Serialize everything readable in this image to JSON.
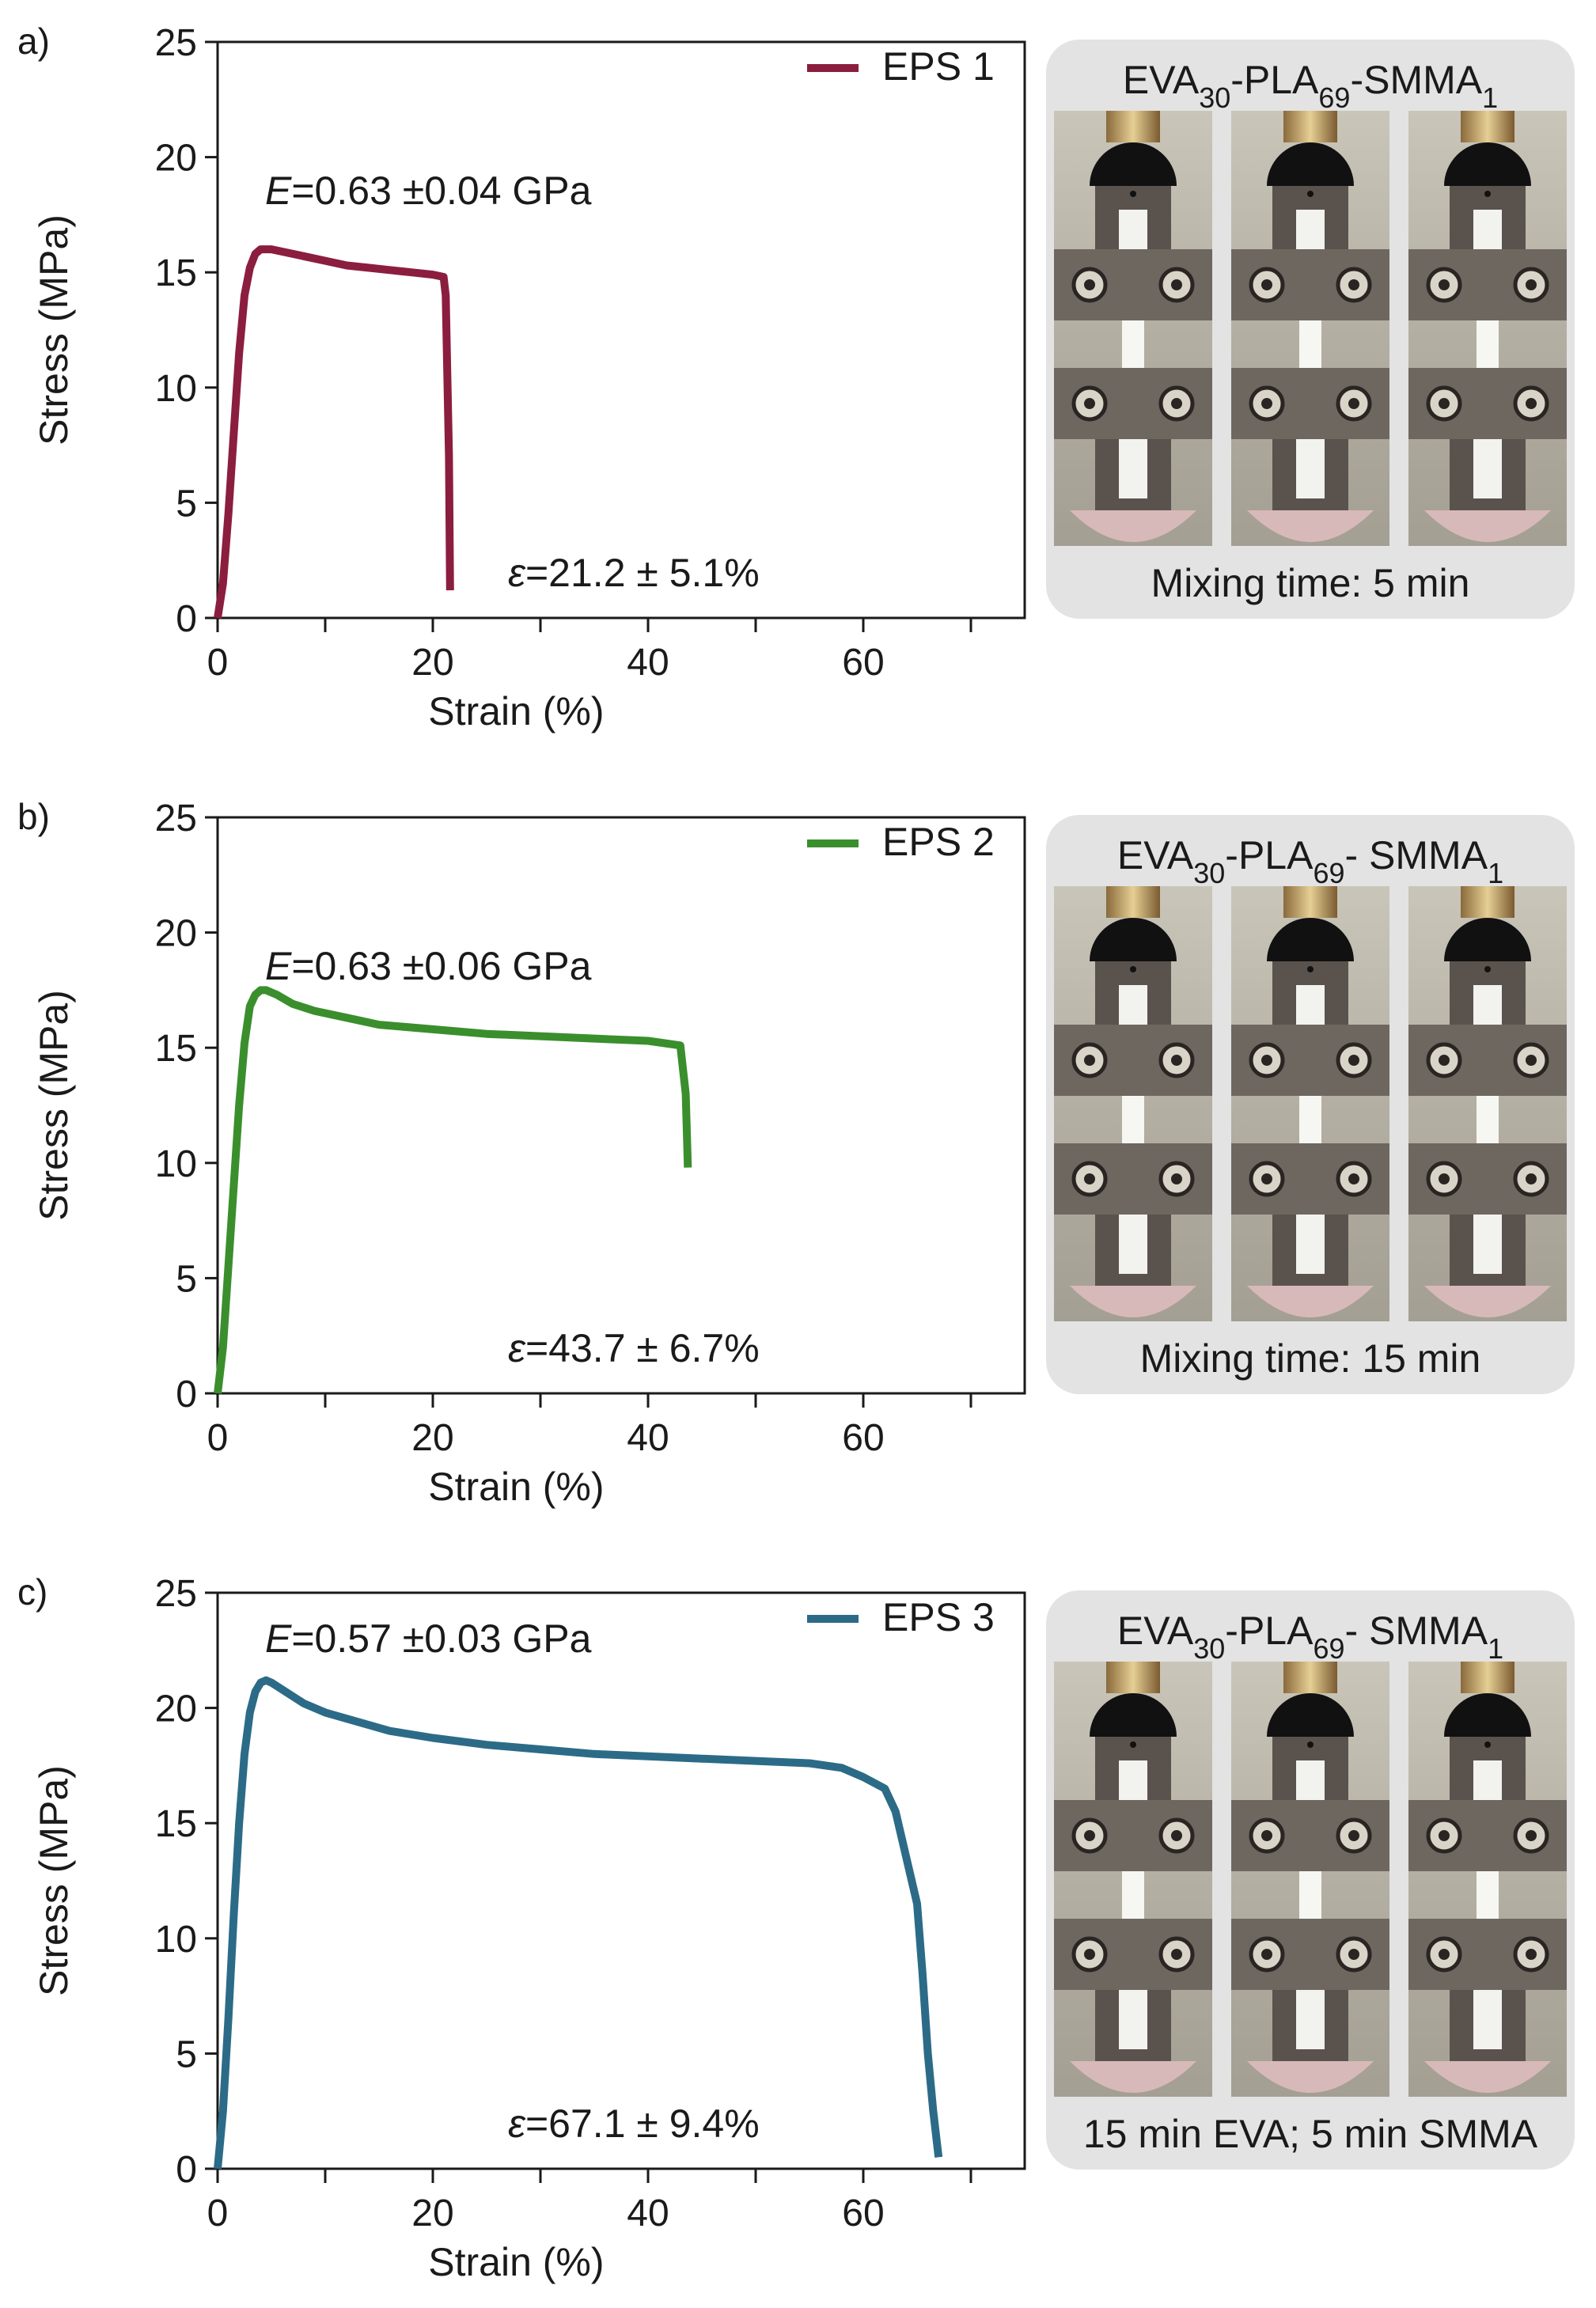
{
  "chart_data": [
    {
      "type": "line",
      "panel_letter": "a)",
      "xlabel": "Strain (%)",
      "ylabel": "Stress (MPa)",
      "xlim": [
        0,
        75
      ],
      "ylim": [
        0,
        25
      ],
      "x_ticks": [
        0,
        20,
        40,
        60
      ],
      "x_minor_ticks": [
        10,
        30,
        50,
        70
      ],
      "y_ticks": [
        0,
        5,
        10,
        15,
        20,
        25
      ],
      "grid": false,
      "legend_position": "top-right",
      "series": [
        {
          "name": "EPS 1",
          "color": "#8b1e3f",
          "x": [
            0.0,
            0.5,
            1.0,
            1.5,
            2.0,
            2.5,
            3.0,
            3.5,
            4.0,
            5.0,
            6.0,
            8.0,
            10.0,
            12.0,
            14.0,
            16.0,
            18.0,
            20.0,
            21.0,
            21.2,
            21.5,
            21.6
          ],
          "y": [
            0.0,
            1.5,
            4.5,
            8.0,
            11.5,
            14.0,
            15.2,
            15.8,
            16.0,
            16.0,
            15.9,
            15.7,
            15.5,
            15.3,
            15.2,
            15.1,
            15.0,
            14.9,
            14.8,
            14.0,
            7.0,
            1.2
          ]
        }
      ],
      "annotations": {
        "modulus_prefix": "E",
        "modulus_value": "=0.63 ±0.04 GPa",
        "strain_prefix": "ε",
        "strain_value": "=21.2 ± 5.1%"
      }
    },
    {
      "type": "line",
      "panel_letter": "b)",
      "xlabel": "Strain (%)",
      "ylabel": "Stress (MPa)",
      "xlim": [
        0,
        75
      ],
      "ylim": [
        0,
        25
      ],
      "x_ticks": [
        0,
        20,
        40,
        60
      ],
      "x_minor_ticks": [
        10,
        30,
        50,
        70
      ],
      "y_ticks": [
        0,
        5,
        10,
        15,
        20,
        25
      ],
      "grid": false,
      "legend_position": "top-right",
      "series": [
        {
          "name": "EPS 2",
          "color": "#3a8f2c",
          "x": [
            0.0,
            0.5,
            1.0,
            1.5,
            2.0,
            2.5,
            3.0,
            3.5,
            4.0,
            4.5,
            5.5,
            7.0,
            9.0,
            12.0,
            15.0,
            20.0,
            25.0,
            30.0,
            35.0,
            40.0,
            43.0,
            43.5,
            43.7
          ],
          "y": [
            0.0,
            2.0,
            5.5,
            9.0,
            12.5,
            15.2,
            16.8,
            17.3,
            17.5,
            17.5,
            17.3,
            16.9,
            16.6,
            16.3,
            16.0,
            15.8,
            15.6,
            15.5,
            15.4,
            15.3,
            15.1,
            13.0,
            9.8
          ]
        }
      ],
      "annotations": {
        "modulus_prefix": "E",
        "modulus_value": "=0.63 ±0.06 GPa",
        "strain_prefix": "ε",
        "strain_value": "=43.7 ± 6.7%"
      }
    },
    {
      "type": "line",
      "panel_letter": "c)",
      "xlabel": "Strain (%)",
      "ylabel": "Stress (MPa)",
      "xlim": [
        0,
        75
      ],
      "ylim": [
        0,
        25
      ],
      "x_ticks": [
        0,
        20,
        40,
        60
      ],
      "x_minor_ticks": [
        10,
        30,
        50,
        70
      ],
      "y_ticks": [
        0,
        5,
        10,
        15,
        20,
        25
      ],
      "grid": false,
      "legend_position": "top-right",
      "series": [
        {
          "name": "EPS 3",
          "color": "#2c6b87",
          "x": [
            0.0,
            0.5,
            1.0,
            1.5,
            2.0,
            2.5,
            3.0,
            3.5,
            4.0,
            4.5,
            5.0,
            6.0,
            8.0,
            10.0,
            13.0,
            16.0,
            20.0,
            25.0,
            30.0,
            35.0,
            40.0,
            45.0,
            50.0,
            55.0,
            58.0,
            60.0,
            62.0,
            63.0,
            64.0,
            65.0,
            65.5,
            66.0,
            66.5,
            67.0
          ],
          "y": [
            0.0,
            2.5,
            6.5,
            11.0,
            15.0,
            18.0,
            19.8,
            20.7,
            21.1,
            21.2,
            21.1,
            20.8,
            20.2,
            19.8,
            19.4,
            19.0,
            18.7,
            18.4,
            18.2,
            18.0,
            17.9,
            17.8,
            17.7,
            17.6,
            17.4,
            17.0,
            16.5,
            15.5,
            13.5,
            11.5,
            8.5,
            5.0,
            2.5,
            0.5
          ]
        }
      ],
      "annotations": {
        "modulus_prefix": "E",
        "modulus_value": "=0.57 ±0.03 GPa",
        "strain_prefix": "ε",
        "strain_value": "=67.1 ± 9.4%"
      }
    }
  ],
  "photo_panels": [
    {
      "title_parts": [
        "EVA",
        "30",
        "-PLA",
        "69",
        "-SMMA",
        "1"
      ],
      "caption": "Mixing time: 5 min",
      "frames": [
        {
          "break_fraction": 0.0
        },
        {
          "break_fraction": 0.0
        },
        {
          "break_fraction": 0.0
        }
      ]
    },
    {
      "title_parts": [
        "EVA",
        "30",
        "-PLA",
        "69",
        "- SMMA",
        "1"
      ],
      "caption": "Mixing time: 15 min",
      "frames": [
        {
          "break_fraction": 0.0
        },
        {
          "break_fraction": 0.0
        },
        {
          "break_fraction": 0.0
        }
      ]
    },
    {
      "title_parts": [
        "EVA",
        "30",
        "-PLA",
        "69",
        "- SMMA",
        "1"
      ],
      "caption": "15 min EVA; 5 min SMMA",
      "frames": [
        {
          "break_fraction": 0.0
        },
        {
          "break_fraction": 0.0
        },
        {
          "break_fraction": 0.0
        }
      ]
    }
  ],
  "colors": {
    "axis": "#1a1a1a",
    "photo_panel_bg": "#e3e3e3",
    "grip_dark": "#2a2522",
    "grip_plate": "#6e6760",
    "specimen": "#f2f2ee",
    "backdrop": "#b7b3a8"
  }
}
